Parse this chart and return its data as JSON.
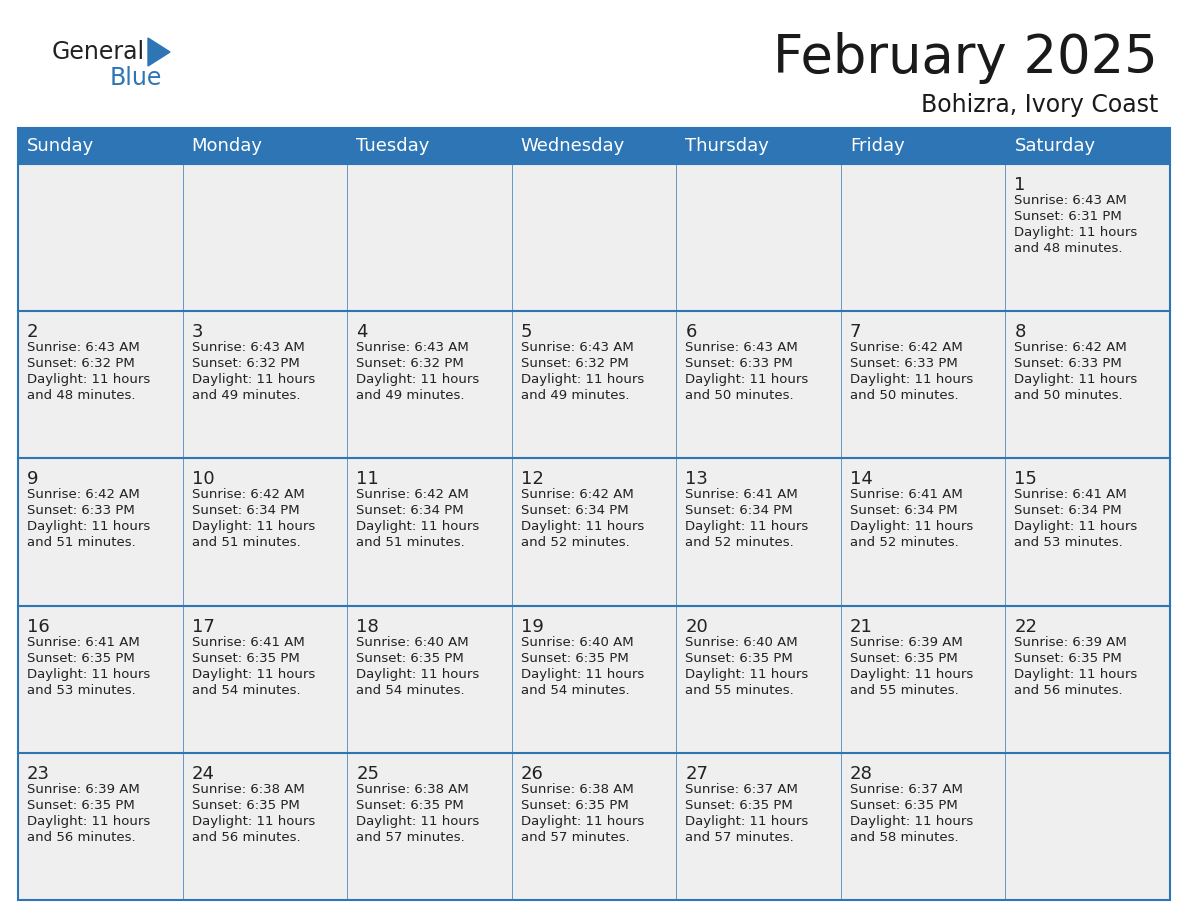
{
  "title": "February 2025",
  "subtitle": "Bohizra, Ivory Coast",
  "days_of_week": [
    "Sunday",
    "Monday",
    "Tuesday",
    "Wednesday",
    "Thursday",
    "Friday",
    "Saturday"
  ],
  "header_bg": "#2E75B6",
  "header_text": "#FFFFFF",
  "cell_bg": "#EFEFEF",
  "border_color": "#2E75B6",
  "text_color": "#222222",
  "day_number_color": "#222222",
  "logo_general_color": "#222222",
  "logo_blue_color": "#2E75B6",
  "calendar_data": [
    [
      {
        "day": null,
        "info": null
      },
      {
        "day": null,
        "info": null
      },
      {
        "day": null,
        "info": null
      },
      {
        "day": null,
        "info": null
      },
      {
        "day": null,
        "info": null
      },
      {
        "day": null,
        "info": null
      },
      {
        "day": 1,
        "info": "Sunrise: 6:43 AM\nSunset: 6:31 PM\nDaylight: 11 hours\nand 48 minutes."
      }
    ],
    [
      {
        "day": 2,
        "info": "Sunrise: 6:43 AM\nSunset: 6:32 PM\nDaylight: 11 hours\nand 48 minutes."
      },
      {
        "day": 3,
        "info": "Sunrise: 6:43 AM\nSunset: 6:32 PM\nDaylight: 11 hours\nand 49 minutes."
      },
      {
        "day": 4,
        "info": "Sunrise: 6:43 AM\nSunset: 6:32 PM\nDaylight: 11 hours\nand 49 minutes."
      },
      {
        "day": 5,
        "info": "Sunrise: 6:43 AM\nSunset: 6:32 PM\nDaylight: 11 hours\nand 49 minutes."
      },
      {
        "day": 6,
        "info": "Sunrise: 6:43 AM\nSunset: 6:33 PM\nDaylight: 11 hours\nand 50 minutes."
      },
      {
        "day": 7,
        "info": "Sunrise: 6:42 AM\nSunset: 6:33 PM\nDaylight: 11 hours\nand 50 minutes."
      },
      {
        "day": 8,
        "info": "Sunrise: 6:42 AM\nSunset: 6:33 PM\nDaylight: 11 hours\nand 50 minutes."
      }
    ],
    [
      {
        "day": 9,
        "info": "Sunrise: 6:42 AM\nSunset: 6:33 PM\nDaylight: 11 hours\nand 51 minutes."
      },
      {
        "day": 10,
        "info": "Sunrise: 6:42 AM\nSunset: 6:34 PM\nDaylight: 11 hours\nand 51 minutes."
      },
      {
        "day": 11,
        "info": "Sunrise: 6:42 AM\nSunset: 6:34 PM\nDaylight: 11 hours\nand 51 minutes."
      },
      {
        "day": 12,
        "info": "Sunrise: 6:42 AM\nSunset: 6:34 PM\nDaylight: 11 hours\nand 52 minutes."
      },
      {
        "day": 13,
        "info": "Sunrise: 6:41 AM\nSunset: 6:34 PM\nDaylight: 11 hours\nand 52 minutes."
      },
      {
        "day": 14,
        "info": "Sunrise: 6:41 AM\nSunset: 6:34 PM\nDaylight: 11 hours\nand 52 minutes."
      },
      {
        "day": 15,
        "info": "Sunrise: 6:41 AM\nSunset: 6:34 PM\nDaylight: 11 hours\nand 53 minutes."
      }
    ],
    [
      {
        "day": 16,
        "info": "Sunrise: 6:41 AM\nSunset: 6:35 PM\nDaylight: 11 hours\nand 53 minutes."
      },
      {
        "day": 17,
        "info": "Sunrise: 6:41 AM\nSunset: 6:35 PM\nDaylight: 11 hours\nand 54 minutes."
      },
      {
        "day": 18,
        "info": "Sunrise: 6:40 AM\nSunset: 6:35 PM\nDaylight: 11 hours\nand 54 minutes."
      },
      {
        "day": 19,
        "info": "Sunrise: 6:40 AM\nSunset: 6:35 PM\nDaylight: 11 hours\nand 54 minutes."
      },
      {
        "day": 20,
        "info": "Sunrise: 6:40 AM\nSunset: 6:35 PM\nDaylight: 11 hours\nand 55 minutes."
      },
      {
        "day": 21,
        "info": "Sunrise: 6:39 AM\nSunset: 6:35 PM\nDaylight: 11 hours\nand 55 minutes."
      },
      {
        "day": 22,
        "info": "Sunrise: 6:39 AM\nSunset: 6:35 PM\nDaylight: 11 hours\nand 56 minutes."
      }
    ],
    [
      {
        "day": 23,
        "info": "Sunrise: 6:39 AM\nSunset: 6:35 PM\nDaylight: 11 hours\nand 56 minutes."
      },
      {
        "day": 24,
        "info": "Sunrise: 6:38 AM\nSunset: 6:35 PM\nDaylight: 11 hours\nand 56 minutes."
      },
      {
        "day": 25,
        "info": "Sunrise: 6:38 AM\nSunset: 6:35 PM\nDaylight: 11 hours\nand 57 minutes."
      },
      {
        "day": 26,
        "info": "Sunrise: 6:38 AM\nSunset: 6:35 PM\nDaylight: 11 hours\nand 57 minutes."
      },
      {
        "day": 27,
        "info": "Sunrise: 6:37 AM\nSunset: 6:35 PM\nDaylight: 11 hours\nand 57 minutes."
      },
      {
        "day": 28,
        "info": "Sunrise: 6:37 AM\nSunset: 6:35 PM\nDaylight: 11 hours\nand 58 minutes."
      },
      {
        "day": null,
        "info": null
      }
    ]
  ]
}
